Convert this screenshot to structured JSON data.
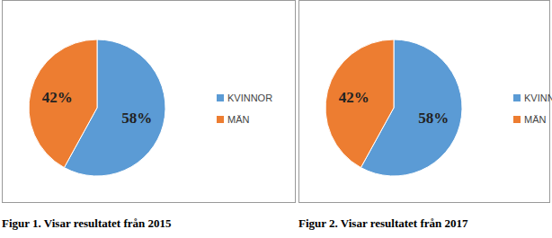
{
  "chart_data": [
    {
      "type": "pie",
      "title": "Figur 1. Visar resultatet från 2015",
      "categories": [
        "KVINNOR",
        "MÄN"
      ],
      "values": [
        58,
        42
      ],
      "value_labels": [
        "58%",
        "42%"
      ],
      "colors": [
        "#5b9bd5",
        "#ed7d31"
      ],
      "data_labels": true,
      "legend": "right"
    },
    {
      "type": "pie",
      "title": "Figur 2. Visar resultatet från 2017",
      "categories": [
        "KVINNOR",
        "MÄN"
      ],
      "values": [
        58,
        42
      ],
      "value_labels": [
        "58%",
        "42%"
      ],
      "colors": [
        "#5b9bd5",
        "#ed7d31"
      ],
      "data_labels": true,
      "legend": "right"
    }
  ]
}
